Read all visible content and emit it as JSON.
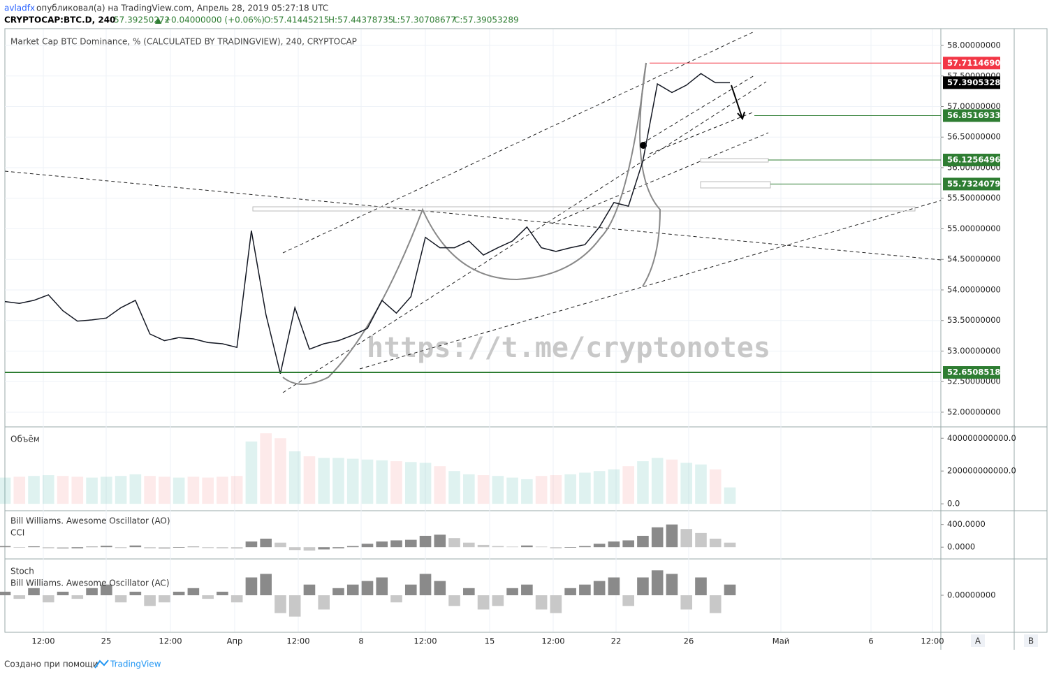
{
  "header": {
    "author": "avladfx",
    "published": "опубликовал(а) на TradingView.com, Апрель 28, 2019 05:27:18 UTC",
    "symbol": "CRYPTOCAP:BTC.D, 240",
    "price": "57.39250272",
    "arrow": "▲",
    "change": "+0.04000000 (+0.06%)",
    "open": "O:57.41445215",
    "high": "H:57.44378735",
    "low": "L:57.30708677",
    "close": "C:57.39053289"
  },
  "chart_data": {
    "type": "line",
    "title": "Market Cap BTC Dominance, % (CALCULATED BY TRADINGVIEW), 240, CRYPTOCAP",
    "watermark": "https://t.me/cryptonotes",
    "color": "#131722",
    "values": [
      53.81,
      53.78,
      53.83,
      53.92,
      53.66,
      53.49,
      53.51,
      53.54,
      53.71,
      53.83,
      53.28,
      53.17,
      53.22,
      53.2,
      53.14,
      53.12,
      53.06,
      54.97,
      53.6,
      52.63,
      53.71,
      53.03,
      53.12,
      53.17,
      53.26,
      53.37,
      53.83,
      53.62,
      53.89,
      54.86,
      54.69,
      54.69,
      54.8,
      54.57,
      54.69,
      54.8,
      55.03,
      54.69,
      54.63,
      54.69,
      54.74,
      55.03,
      55.43,
      55.37,
      56.11,
      57.37,
      57.23,
      57.35,
      57.54,
      57.39,
      57.39
    ],
    "ylim": [
      51.771,
      58.263
    ],
    "yticks": [
      {
        "value": 52,
        "label": "52.00000000"
      },
      {
        "value": 52.5,
        "label": "52.50000000"
      },
      {
        "value": 53,
        "label": "53.00000000"
      },
      {
        "value": 53.5,
        "label": "53.50000000"
      },
      {
        "value": 54,
        "label": "54.00000000"
      },
      {
        "value": 54.5,
        "label": "54.50000000"
      },
      {
        "value": 55,
        "label": "55.00000000"
      },
      {
        "value": 55.5,
        "label": "55.50000000"
      },
      {
        "value": 56,
        "label": "56.00000000"
      },
      {
        "value": 56.5,
        "label": "56.50000000"
      },
      {
        "value": 57,
        "label": "57.00000000"
      },
      {
        "value": 57.5,
        "label": "57.50000000"
      },
      {
        "value": 58,
        "label": "58.00000000"
      }
    ],
    "levels": [
      {
        "value": 57.71146903,
        "color": "#f23645"
      },
      {
        "value": 56.85169332,
        "color": "#2e7d32"
      },
      {
        "value": 56.12564965,
        "color": "#2e7d32"
      },
      {
        "value": 55.73240795,
        "color": "#2e7d32"
      },
      {
        "value": 52.65085182,
        "color": "#2e7d32"
      }
    ],
    "last_price": 57.39053289,
    "xlabels": [
      "12:00",
      "25",
      "12:00",
      "Апр",
      "12:00",
      "8",
      "12:00",
      "15",
      "12:00",
      "22",
      "26",
      "Май",
      "6",
      "12:00"
    ],
    "grid": true,
    "volume": {
      "label": "Объём",
      "values": [
        160000000000,
        165000000000,
        170000000000,
        175000000000,
        170000000000,
        165000000000,
        160000000000,
        165000000000,
        170000000000,
        180000000000,
        170000000000,
        165000000000,
        160000000000,
        165000000000,
        160000000000,
        165000000000,
        170000000000,
        380000000000,
        430000000000,
        400000000000,
        320000000000,
        290000000000,
        280000000000,
        280000000000,
        275000000000,
        270000000000,
        265000000000,
        260000000000,
        255000000000,
        250000000000,
        230000000000,
        200000000000,
        180000000000,
        175000000000,
        170000000000,
        160000000000,
        150000000000,
        170000000000,
        175000000000,
        180000000000,
        190000000000,
        200000000000,
        210000000000,
        230000000000,
        260000000000,
        280000000000,
        270000000000,
        250000000000,
        240000000000,
        210000000000,
        100000000000
      ],
      "ylim": [
        -8000000000,
        465000000000
      ],
      "yticks": [
        {
          "value": 0,
          "label": "0.0"
        },
        {
          "value": 200000000000,
          "label": "200000000000.0"
        },
        {
          "value": 400000000000,
          "label": "400000000000.0"
        }
      ]
    },
    "ao": {
      "label": "Bill Williams. Awesome Oscillator (AO)",
      "label2": "CCI",
      "values": [
        20,
        -10,
        15,
        -20,
        -30,
        -20,
        10,
        25,
        -15,
        30,
        -20,
        -30,
        -10,
        10,
        -15,
        -20,
        -25,
        100,
        150,
        80,
        -50,
        -60,
        -40,
        -20,
        20,
        60,
        100,
        120,
        130,
        200,
        220,
        160,
        80,
        40,
        20,
        10,
        30,
        10,
        -20,
        -10,
        20,
        60,
        100,
        120,
        200,
        350,
        400,
        320,
        250,
        150,
        80
      ],
      "ylim": [
        -170,
        630
      ],
      "yticks": [
        {
          "value": 0,
          "label": "0.0000"
        },
        {
          "value": 400,
          "label": "400.0000"
        }
      ]
    },
    "ac": {
      "label": "Stoch",
      "label2": "Bill Williams. Awesome Oscillator (AC)",
      "values": [
        0.1,
        -0.1,
        0.2,
        -0.2,
        0.1,
        -0.1,
        0.2,
        0.3,
        -0.2,
        0.1,
        -0.3,
        -0.2,
        0.1,
        0.2,
        -0.1,
        0.1,
        -0.2,
        0.5,
        0.6,
        -0.5,
        -0.6,
        0.3,
        -0.4,
        0.2,
        0.3,
        0.4,
        0.5,
        -0.2,
        0.3,
        0.6,
        0.4,
        -0.3,
        0.2,
        -0.4,
        -0.3,
        0.2,
        0.3,
        -0.4,
        -0.5,
        0.2,
        0.3,
        0.4,
        0.5,
        -0.3,
        0.5,
        0.7,
        0.6,
        -0.4,
        0.5,
        -0.5,
        0.3
      ],
      "ylim": [
        -1,
        1
      ],
      "yticks": [
        {
          "value": 0,
          "label": "0.00000000"
        }
      ]
    }
  },
  "footer": {
    "made_with": "Создано при помощи",
    "brand": "TradingView",
    "button_a": "A",
    "button_b": "B"
  }
}
